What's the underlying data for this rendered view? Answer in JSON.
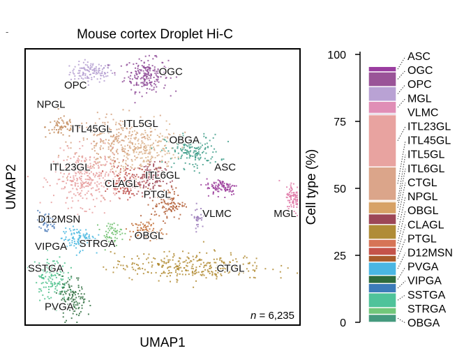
{
  "chart_data": [
    {
      "type": "scatter",
      "title": "Mouse cortex Droplet Hi-C",
      "xlabel": "UMAP1",
      "ylabel": "UMAP2",
      "annotation": "n = 6,235",
      "annotation_prefix": "n",
      "annotation_value": " = 6,235",
      "x_range": [
        0,
        100
      ],
      "y_range": [
        0,
        100
      ],
      "ticks": "none",
      "clusters": [
        {
          "label": "OPC",
          "color": "#b39cd0",
          "center": [
            24,
            92
          ],
          "spread": [
            4,
            1.8
          ],
          "n": 120,
          "label_pos": [
            18,
            86
          ]
        },
        {
          "label": "OGC",
          "color": "#8e4a96",
          "center": [
            44,
            91
          ],
          "spread": [
            4,
            3
          ],
          "n": 200,
          "label_pos": [
            53,
            91
          ]
        },
        {
          "label": "NPGL",
          "color": "#c28a5a",
          "center": [
            13,
            72
          ],
          "spread": [
            3,
            2
          ],
          "n": 60,
          "label_pos": [
            9,
            79
          ]
        },
        {
          "label": "ITL45GL",
          "color": "#d4a07c",
          "center": [
            33,
            66
          ],
          "spread": [
            8,
            5
          ],
          "n": 260,
          "label_pos": [
            24,
            70
          ]
        },
        {
          "label": "ITL5GL",
          "color": "#dcb48c",
          "center": [
            43,
            64
          ],
          "spread": [
            6,
            5
          ],
          "n": 200,
          "label_pos": [
            42,
            72
          ]
        },
        {
          "label": "OBGA",
          "color": "#3f9e8a",
          "center": [
            61,
            63
          ],
          "spread": [
            5,
            3
          ],
          "n": 160,
          "label_pos": [
            58,
            66
          ]
        },
        {
          "label": "ITL23GL",
          "color": "#e8a0a0",
          "center": [
            22,
            53
          ],
          "spread": [
            6,
            5
          ],
          "n": 340,
          "label_pos": [
            16,
            56
          ]
        },
        {
          "label": "CLAGL",
          "color": "#c0504a",
          "center": [
            37,
            52
          ],
          "spread": [
            3,
            3
          ],
          "n": 120,
          "label_pos": [
            35,
            50
          ]
        },
        {
          "label": "ITL6GL",
          "color": "#a04a5a",
          "center": [
            45,
            53
          ],
          "spread": [
            3,
            3
          ],
          "n": 120,
          "label_pos": [
            50,
            53
          ]
        },
        {
          "label": "PTGL",
          "color": "#b05a30",
          "center": [
            52,
            44
          ],
          "spread": [
            3,
            3
          ],
          "n": 100,
          "label_pos": [
            48,
            46
          ]
        },
        {
          "label": "ASC",
          "color": "#9a3a9a",
          "center": [
            72,
            50
          ],
          "spread": [
            3,
            1.5
          ],
          "n": 90,
          "label_pos": [
            73,
            56
          ]
        },
        {
          "label": "MGL",
          "color": "#e07aa8",
          "center": [
            98,
            46
          ],
          "spread": [
            1.5,
            3
          ],
          "n": 90,
          "label_pos": [
            95,
            39
          ]
        },
        {
          "label": "VLMC",
          "color": "#9a7ab8",
          "center": [
            63,
            39
          ],
          "spread": [
            1,
            2
          ],
          "n": 30,
          "label_pos": [
            70,
            39
          ]
        },
        {
          "label": "D12MSN",
          "color": "#4a7ab8",
          "center": [
            7,
            37
          ],
          "spread": [
            2,
            2
          ],
          "n": 50,
          "label_pos": [
            12,
            37
          ]
        },
        {
          "label": "STRGA",
          "color": "#6dbf6d",
          "center": [
            31,
            33
          ],
          "spread": [
            2,
            2
          ],
          "n": 60,
          "label_pos": [
            26,
            28
          ]
        },
        {
          "label": "OBGL",
          "color": "#c06a30",
          "center": [
            44,
            34
          ],
          "spread": [
            3,
            2
          ],
          "n": 80,
          "label_pos": [
            45,
            31
          ]
        },
        {
          "label": "VIPGA",
          "color": "#4ab8e0",
          "center": [
            19,
            31
          ],
          "spread": [
            3,
            2
          ],
          "n": 110,
          "label_pos": [
            9,
            27
          ]
        },
        {
          "label": "CTGL",
          "color": "#b08a30",
          "center": [
            60,
            21
          ],
          "spread": [
            14,
            2.5
          ],
          "n": 300,
          "label_pos": [
            75,
            19
          ]
        },
        {
          "label": "SSTGA",
          "color": "#4ac08a",
          "center": [
            9,
            17
          ],
          "spread": [
            3,
            4
          ],
          "n": 130,
          "label_pos": [
            7,
            19
          ]
        },
        {
          "label": "PVGA",
          "color": "#2f6e3f",
          "center": [
            17,
            9
          ],
          "spread": [
            2.5,
            4
          ],
          "n": 120,
          "label_pos": [
            12,
            5
          ]
        }
      ]
    },
    {
      "type": "stacked_bar",
      "ylabel": "Cell type (%)",
      "ylim": [
        0,
        100
      ],
      "yticks": [
        "0",
        "25",
        "50",
        "75",
        "100"
      ],
      "segments_bottom_to_top": [
        {
          "label": "OBGA",
          "color": "#459a7e",
          "value": 3.0
        },
        {
          "label": "STRGA",
          "color": "#72c77a",
          "value": 2.5
        },
        {
          "label": "SSTGA",
          "color": "#4fc39a",
          "value": 5.5
        },
        {
          "label": "VIPGA",
          "color": "#3c7bb9",
          "value": 3.5
        },
        {
          "label": "PVGA",
          "color": "#2e6b3c",
          "value": 3.0
        },
        {
          "label": "D12MSN",
          "color": "#4ab6e3",
          "value": 5.0
        },
        {
          "label": "PTGL",
          "color": "#a75a2b",
          "value": 2.5
        },
        {
          "label": "CLAGL",
          "color": "#c4534a",
          "value": 3.0
        },
        {
          "label": "OBGL",
          "color": "#d67456",
          "value": 3.0
        },
        {
          "label": "NPGL",
          "color": "#b08c37",
          "value": 5.5
        },
        {
          "label": "CTGL",
          "color": "#9c4757",
          "value": 4.0
        },
        {
          "label": "ITL6GL",
          "color": "#d7a266",
          "value": 4.5
        },
        {
          "label": "ITL5GL",
          "color": "#eab785",
          "value": 0.5
        },
        {
          "label": "ITL45GL",
          "color": "#dba58a",
          "value": 12.5
        },
        {
          "label": "ITL23GL",
          "color": "#e8a3a0",
          "value": 19.5
        },
        {
          "label": "VLMC",
          "color": "#8e5c8e",
          "value": 0.5
        },
        {
          "label": "MGL",
          "color": "#e08eb6",
          "value": 4.5
        },
        {
          "label": "OPC",
          "color": "#b9a2d4",
          "value": 5.5
        },
        {
          "label": "OGC",
          "color": "#9a5498",
          "value": 5.5
        },
        {
          "label": "ASC",
          "color": "#9a3da0",
          "value": 2.0
        }
      ],
      "legend_order_top_to_bottom": [
        "ASC",
        "OGC",
        "OPC",
        "MGL",
        "VLMC",
        "ITL23GL",
        "ITL45GL",
        "ITL5GL",
        "ITL6GL",
        "CTGL",
        "NPGL",
        "OBGL",
        "CLAGL",
        "PTGL",
        "D12MSN",
        "PVGA",
        "VIPGA",
        "SSTGA",
        "STRGA",
        "OBGA"
      ]
    }
  ],
  "corner_mark": "-"
}
